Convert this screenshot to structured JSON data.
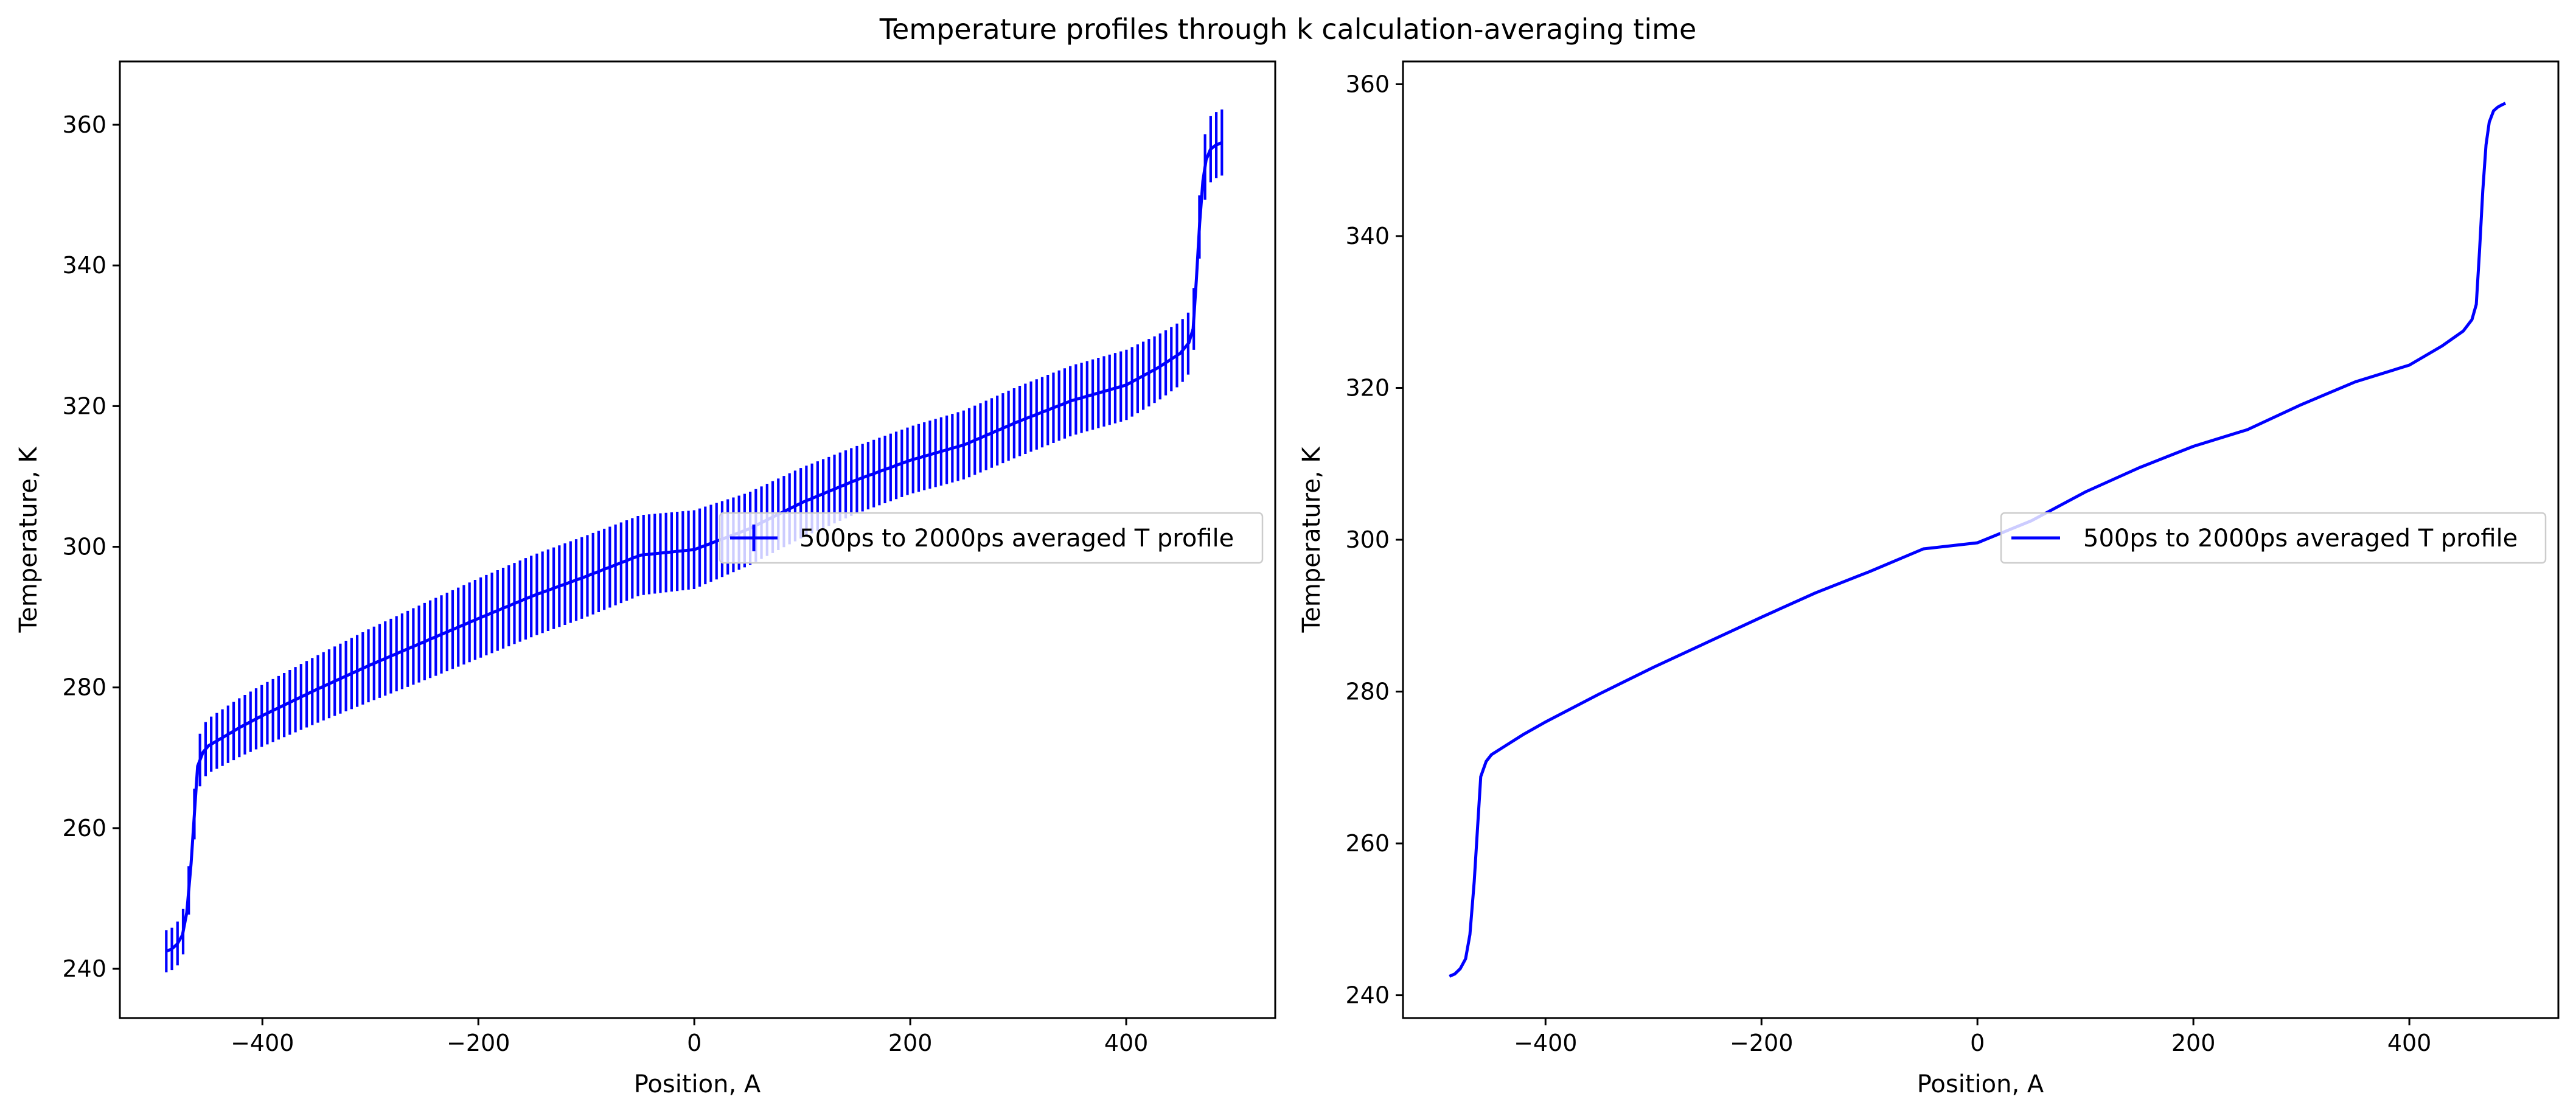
{
  "figure": {
    "suptitle": "Temperature profiles through k calculation-averaging time"
  },
  "colors": {
    "series": "#0000ff",
    "axis": "#000000",
    "legend_border": "#cccccc"
  },
  "chart_data": [
    {
      "type": "line",
      "subtype": "errorbar",
      "xlabel": "Position, A",
      "ylabel": "Temperature, K",
      "xlim": [
        -532,
        538
      ],
      "ylim": [
        233,
        369
      ],
      "xticks": [
        -400,
        -200,
        0,
        200,
        400
      ],
      "xtick_labels": [
        "−400",
        "−200",
        "0",
        "200",
        "400"
      ],
      "yticks": [
        240,
        260,
        280,
        300,
        320,
        340,
        360
      ],
      "ytick_labels": [
        "240",
        "260",
        "280",
        "300",
        "320",
        "340",
        "360"
      ],
      "legend_position": "center-right",
      "series": [
        {
          "name": "500ps to 2000ps averaged T profile",
          "color": "#0000ff",
          "x": [
            -489,
            -484,
            -479,
            -474,
            -470,
            -466,
            -463,
            -460,
            -455,
            -450,
            -440,
            -420,
            -400,
            -350,
            -300,
            -250,
            -200,
            -150,
            -100,
            -50,
            0,
            50,
            100,
            150,
            200,
            250,
            300,
            350,
            400,
            430,
            450,
            458,
            462,
            465,
            468,
            471,
            474,
            478,
            482,
            486,
            489
          ],
          "y": [
            242.5,
            242.8,
            243.5,
            244.8,
            248.0,
            255.0,
            262.0,
            268.8,
            270.8,
            271.7,
            272.6,
            274.4,
            276.0,
            279.7,
            283.2,
            286.5,
            289.8,
            293.0,
            295.8,
            298.8,
            299.6,
            302.5,
            306.3,
            309.5,
            312.3,
            314.5,
            317.8,
            320.8,
            323.0,
            325.5,
            327.5,
            329.0,
            331.0,
            338.0,
            346.0,
            352.0,
            355.0,
            356.5,
            357.0,
            357.3,
            357.5
          ],
          "error": [
            3.0,
            3.0,
            3.1,
            3.2,
            3.4,
            3.5,
            3.6,
            3.7,
            3.8,
            3.9,
            4.0,
            4.2,
            4.4,
            4.8,
            5.2,
            5.5,
            5.7,
            5.8,
            5.8,
            5.7,
            5.6,
            5.2,
            5.0,
            4.8,
            4.8,
            4.9,
            5.0,
            5.0,
            5.0,
            4.7,
            4.5,
            4.4,
            4.4,
            4.4,
            4.5,
            4.6,
            4.7,
            4.7,
            4.7,
            4.7,
            4.7
          ]
        }
      ]
    },
    {
      "type": "line",
      "xlabel": "Position, A",
      "ylabel": "Temperature, K",
      "xlim": [
        -532,
        538
      ],
      "ylim": [
        237,
        363
      ],
      "xticks": [
        -400,
        -200,
        0,
        200,
        400
      ],
      "xtick_labels": [
        "−400",
        "−200",
        "0",
        "200",
        "400"
      ],
      "yticks": [
        240,
        260,
        280,
        300,
        320,
        340,
        360
      ],
      "ytick_labels": [
        "240",
        "260",
        "280",
        "300",
        "320",
        "340",
        "360"
      ],
      "legend_position": "center-right",
      "series": [
        {
          "name": "500ps to 2000ps averaged T profile",
          "color": "#0000ff",
          "x": [
            -489,
            -484,
            -479,
            -474,
            -470,
            -466,
            -463,
            -460,
            -455,
            -450,
            -440,
            -420,
            -400,
            -350,
            -300,
            -250,
            -200,
            -150,
            -100,
            -50,
            0,
            50,
            100,
            150,
            200,
            250,
            300,
            350,
            400,
            430,
            450,
            458,
            462,
            465,
            468,
            471,
            474,
            478,
            482,
            486,
            489
          ],
          "y": [
            242.5,
            242.8,
            243.5,
            244.8,
            248.0,
            255.0,
            262.0,
            268.8,
            270.8,
            271.7,
            272.6,
            274.4,
            276.0,
            279.7,
            283.2,
            286.5,
            289.8,
            293.0,
            295.8,
            298.8,
            299.6,
            302.5,
            306.3,
            309.5,
            312.3,
            314.5,
            317.8,
            320.8,
            323.0,
            325.5,
            327.5,
            329.0,
            331.0,
            338.0,
            346.0,
            352.0,
            355.0,
            356.5,
            357.0,
            357.3,
            357.5
          ]
        }
      ]
    }
  ]
}
